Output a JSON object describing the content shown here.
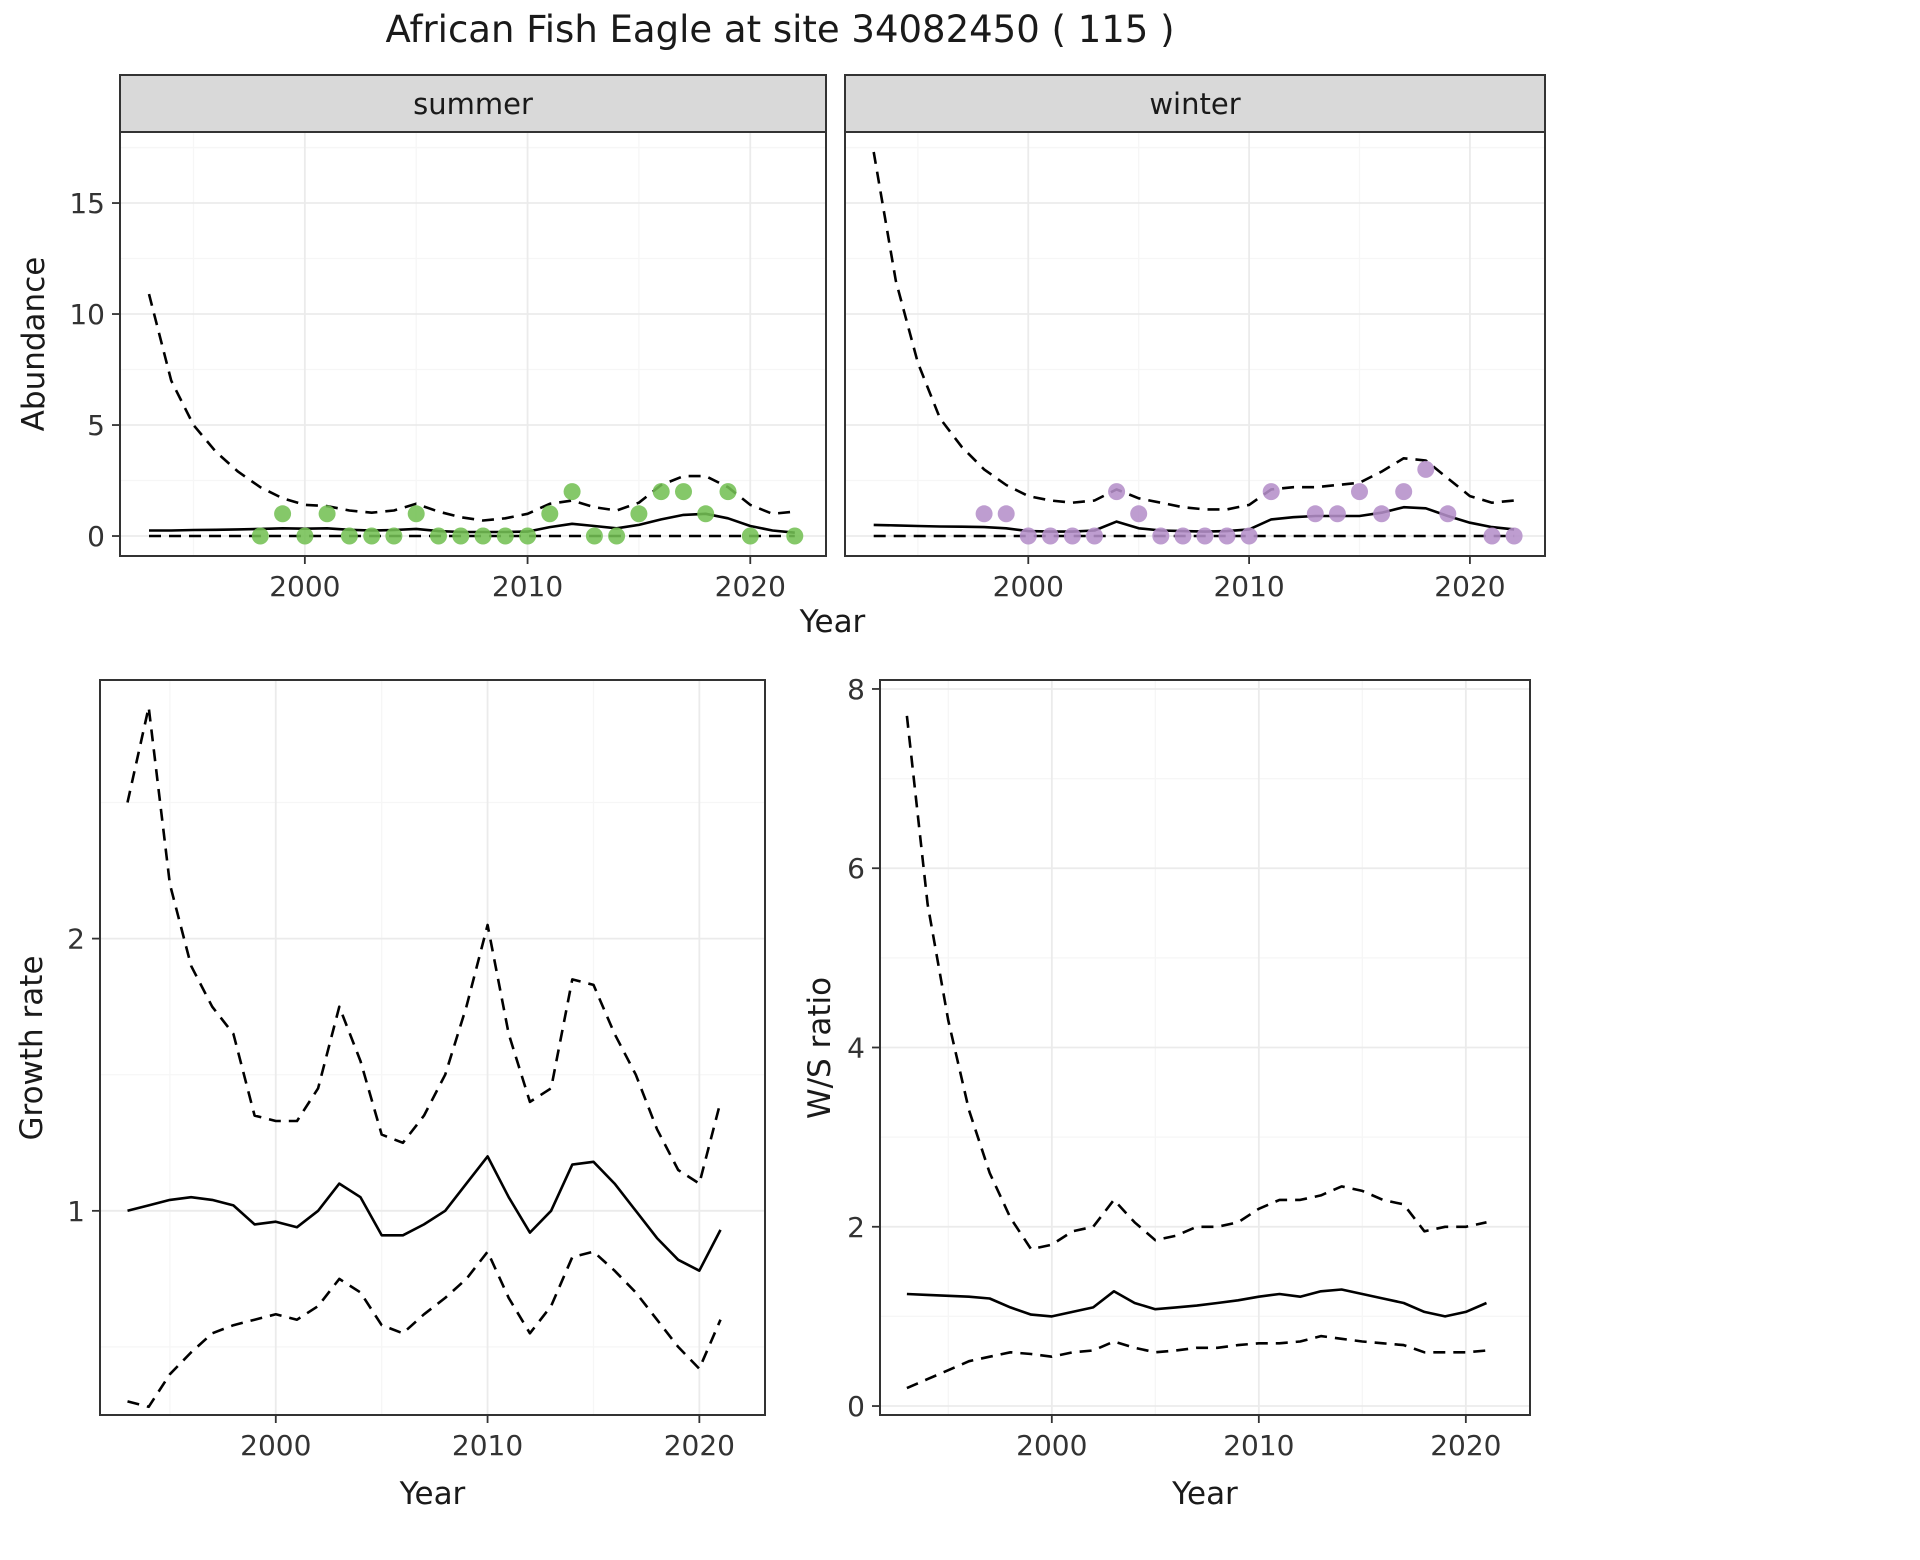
{
  "title": "African Fish Eagle at site 34082450 ( 115 )",
  "colors": {
    "summer_points": "#74c054",
    "winter_points": "#b58fc9",
    "line": "#000000",
    "grid_major": "#ebebeb",
    "grid_minor": "#f6f6f6",
    "strip_bg": "#d9d9d9",
    "panel_border": "#333333",
    "tick_text": "#333333"
  },
  "chart_data": [
    {
      "id": "abundance",
      "type": "line",
      "xlabel": "Year",
      "ylabel": "Abundance",
      "xticks": [
        2000,
        2010,
        2020
      ],
      "yticks": [
        0,
        5,
        10,
        15
      ],
      "xlim": [
        1991.7,
        2023.4
      ],
      "ylim": [
        -0.9,
        18.2
      ],
      "grid": true,
      "legend": "none",
      "years": [
        1993,
        1994,
        1995,
        1996,
        1997,
        1998,
        1999,
        2000,
        2001,
        2002,
        2003,
        2004,
        2005,
        2006,
        2007,
        2008,
        2009,
        2010,
        2011,
        2012,
        2013,
        2014,
        2015,
        2016,
        2017,
        2018,
        2019,
        2020,
        2021,
        2022
      ],
      "facets": [
        {
          "label": "summer",
          "point_color": "#74c054",
          "series": [
            {
              "name": "mean",
              "style": "solid",
              "values": [
                0.25,
                0.25,
                0.27,
                0.28,
                0.3,
                0.32,
                0.35,
                0.33,
                0.35,
                0.28,
                0.25,
                0.27,
                0.32,
                0.22,
                0.18,
                0.18,
                0.18,
                0.2,
                0.4,
                0.55,
                0.45,
                0.35,
                0.5,
                0.75,
                0.95,
                1.0,
                0.8,
                0.45,
                0.25,
                0.15
              ]
            },
            {
              "name": "upper-ci",
              "style": "dashed",
              "values": [
                10.9,
                7.0,
                5.0,
                3.8,
                2.9,
                2.2,
                1.7,
                1.4,
                1.35,
                1.15,
                1.05,
                1.15,
                1.45,
                1.1,
                0.85,
                0.7,
                0.8,
                1.0,
                1.45,
                1.6,
                1.3,
                1.15,
                1.5,
                2.3,
                2.7,
                2.7,
                2.2,
                1.4,
                1.0,
                1.1
              ]
            },
            {
              "name": "lower-ci",
              "style": "dashed",
              "values": [
                0,
                0,
                0,
                0,
                0,
                0,
                0,
                0,
                0,
                0,
                0,
                0,
                0,
                0,
                0,
                0,
                0,
                0,
                0,
                0,
                0,
                0,
                0,
                0,
                0,
                0,
                0,
                0,
                0,
                0
              ]
            }
          ],
          "points": {
            "years": [
              1998,
              1999,
              2000,
              2001,
              2002,
              2003,
              2004,
              2005,
              2006,
              2007,
              2008,
              2009,
              2010,
              2011,
              2012,
              2013,
              2014,
              2015,
              2016,
              2017,
              2018,
              2019,
              2020,
              2022
            ],
            "values": [
              0,
              1,
              0,
              1,
              0,
              0,
              0,
              1,
              0,
              0,
              0,
              0,
              0,
              1,
              2,
              0,
              0,
              1,
              2,
              2,
              1,
              2,
              0,
              0
            ]
          }
        },
        {
          "label": "winter",
          "point_color": "#b58fc9",
          "series": [
            {
              "name": "mean",
              "style": "solid",
              "values": [
                0.5,
                0.48,
                0.45,
                0.43,
                0.42,
                0.4,
                0.35,
                0.22,
                0.2,
                0.2,
                0.25,
                0.65,
                0.35,
                0.25,
                0.22,
                0.2,
                0.22,
                0.3,
                0.75,
                0.85,
                0.9,
                0.9,
                0.9,
                1.05,
                1.3,
                1.25,
                0.9,
                0.6,
                0.4,
                0.3
              ]
            },
            {
              "name": "upper-ci",
              "style": "dashed",
              "values": [
                17.3,
                11.5,
                7.8,
                5.3,
                4.0,
                3.0,
                2.3,
                1.8,
                1.6,
                1.5,
                1.6,
                2.1,
                1.7,
                1.5,
                1.3,
                1.2,
                1.2,
                1.4,
                2.1,
                2.2,
                2.2,
                2.3,
                2.4,
                2.9,
                3.5,
                3.4,
                2.6,
                1.8,
                1.5,
                1.6
              ]
            },
            {
              "name": "lower-ci",
              "style": "dashed",
              "values": [
                0,
                0,
                0,
                0,
                0,
                0,
                0,
                0,
                0,
                0,
                0,
                0,
                0,
                0,
                0,
                0,
                0,
                0,
                0,
                0,
                0,
                0,
                0,
                0,
                0,
                0,
                0,
                0,
                0,
                0
              ]
            }
          ],
          "points": {
            "years": [
              1998,
              1999,
              2000,
              2001,
              2002,
              2003,
              2004,
              2005,
              2006,
              2007,
              2008,
              2009,
              2010,
              2011,
              2013,
              2014,
              2015,
              2016,
              2017,
              2018,
              2019,
              2021,
              2022
            ],
            "values": [
              1,
              1,
              0,
              0,
              0,
              0,
              2,
              1,
              0,
              0,
              0,
              0,
              0,
              2,
              1,
              1,
              2,
              1,
              2,
              3,
              1,
              0,
              0
            ]
          }
        }
      ]
    },
    {
      "id": "growth_rate",
      "type": "line",
      "xlabel": "Year",
      "ylabel": "Growth rate",
      "xticks": [
        2000,
        2010,
        2020
      ],
      "yticks": [
        1,
        2
      ],
      "xlim": [
        1991.7,
        2023.1
      ],
      "ylim": [
        0.25,
        2.95
      ],
      "grid": true,
      "legend": "none",
      "years": [
        1993,
        1994,
        1995,
        1996,
        1997,
        1998,
        1999,
        2000,
        2001,
        2002,
        2003,
        2004,
        2005,
        2006,
        2007,
        2008,
        2009,
        2010,
        2011,
        2012,
        2013,
        2014,
        2015,
        2016,
        2017,
        2018,
        2019,
        2020,
        2021
      ],
      "series": [
        {
          "name": "mean",
          "style": "solid",
          "values": [
            1.0,
            1.02,
            1.04,
            1.05,
            1.04,
            1.02,
            0.95,
            0.96,
            0.94,
            1.0,
            1.1,
            1.05,
            0.91,
            0.91,
            0.95,
            1.0,
            1.1,
            1.2,
            1.05,
            0.92,
            1.0,
            1.17,
            1.18,
            1.1,
            1.0,
            0.9,
            0.82,
            0.78,
            0.93
          ]
        },
        {
          "name": "upper-ci",
          "style": "dashed",
          "values": [
            2.5,
            2.85,
            2.2,
            1.9,
            1.75,
            1.65,
            1.35,
            1.33,
            1.33,
            1.45,
            1.75,
            1.55,
            1.28,
            1.25,
            1.35,
            1.5,
            1.75,
            2.05,
            1.65,
            1.4,
            1.45,
            1.85,
            1.83,
            1.65,
            1.5,
            1.3,
            1.15,
            1.1,
            1.4
          ]
        },
        {
          "name": "lower-ci",
          "style": "dashed",
          "values": [
            0.3,
            0.28,
            0.4,
            0.48,
            0.55,
            0.58,
            0.6,
            0.62,
            0.6,
            0.65,
            0.75,
            0.7,
            0.58,
            0.55,
            0.62,
            0.68,
            0.75,
            0.85,
            0.68,
            0.55,
            0.65,
            0.83,
            0.85,
            0.78,
            0.7,
            0.6,
            0.5,
            0.42,
            0.6
          ]
        }
      ]
    },
    {
      "id": "ws_ratio",
      "type": "line",
      "xlabel": "Year",
      "ylabel": "W/S ratio",
      "xticks": [
        2000,
        2010,
        2020
      ],
      "yticks": [
        0,
        2,
        4,
        6,
        8
      ],
      "xlim": [
        1991.7,
        2023.1
      ],
      "ylim": [
        -0.1,
        8.1
      ],
      "grid": true,
      "legend": "none",
      "years": [
        1993,
        1994,
        1995,
        1996,
        1997,
        1998,
        1999,
        2000,
        2001,
        2002,
        2003,
        2004,
        2005,
        2006,
        2007,
        2008,
        2009,
        2010,
        2011,
        2012,
        2013,
        2014,
        2015,
        2016,
        2017,
        2018,
        2019,
        2020,
        2021
      ],
      "series": [
        {
          "name": "mean",
          "style": "solid",
          "values": [
            1.25,
            1.24,
            1.23,
            1.22,
            1.2,
            1.1,
            1.02,
            1.0,
            1.05,
            1.1,
            1.28,
            1.15,
            1.08,
            1.1,
            1.12,
            1.15,
            1.18,
            1.22,
            1.25,
            1.22,
            1.28,
            1.3,
            1.25,
            1.2,
            1.15,
            1.05,
            1.0,
            1.05,
            1.15
          ]
        },
        {
          "name": "upper-ci",
          "style": "dashed",
          "values": [
            7.7,
            5.6,
            4.3,
            3.3,
            2.6,
            2.1,
            1.75,
            1.8,
            1.95,
            2.0,
            2.3,
            2.05,
            1.85,
            1.9,
            2.0,
            2.0,
            2.05,
            2.2,
            2.3,
            2.3,
            2.35,
            2.45,
            2.4,
            2.3,
            2.25,
            1.95,
            2.0,
            2.0,
            2.05
          ]
        },
        {
          "name": "lower-ci",
          "style": "dashed",
          "values": [
            0.2,
            0.3,
            0.4,
            0.5,
            0.55,
            0.6,
            0.58,
            0.55,
            0.6,
            0.62,
            0.72,
            0.65,
            0.6,
            0.62,
            0.65,
            0.65,
            0.68,
            0.7,
            0.7,
            0.72,
            0.78,
            0.75,
            0.72,
            0.7,
            0.68,
            0.6,
            0.6,
            0.6,
            0.62
          ]
        }
      ]
    }
  ]
}
